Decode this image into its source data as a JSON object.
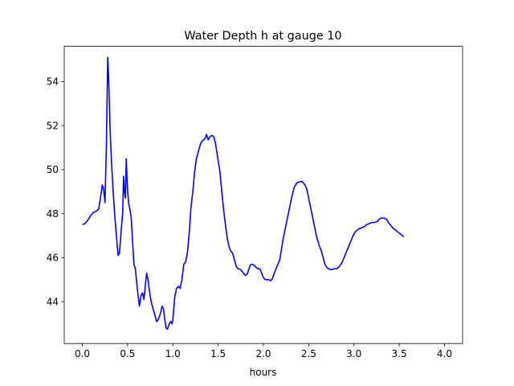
{
  "chart_data": {
    "type": "line",
    "title": "Water Depth h at gauge 10",
    "xlabel": "hours",
    "ylabel": "",
    "xlim": [
      -0.2,
      4.2
    ],
    "ylim": [
      42.1,
      55.6
    ],
    "xticks": [
      0.0,
      0.5,
      1.0,
      1.5,
      2.0,
      2.5,
      3.0,
      3.5,
      4.0
    ],
    "xtick_labels": [
      "0.0",
      "0.5",
      "1.0",
      "1.5",
      "2.0",
      "2.5",
      "3.0",
      "3.5",
      "4.0"
    ],
    "yticks": [
      44,
      46,
      48,
      50,
      52,
      54
    ],
    "ytick_labels": [
      "44",
      "46",
      "48",
      "50",
      "52",
      "54"
    ],
    "grid": false,
    "colors": {
      "line": "#0000ff"
    },
    "series": [
      {
        "points": [
          [
            0.0,
            47.5
          ],
          [
            0.03,
            47.55
          ],
          [
            0.06,
            47.7
          ],
          [
            0.09,
            47.9
          ],
          [
            0.12,
            48.05
          ],
          [
            0.15,
            48.1
          ],
          [
            0.18,
            48.2
          ],
          [
            0.2,
            48.7
          ],
          [
            0.22,
            49.3
          ],
          [
            0.235,
            49.1
          ],
          [
            0.25,
            48.5
          ],
          [
            0.265,
            51.0
          ],
          [
            0.28,
            55.1
          ],
          [
            0.29,
            54.2
          ],
          [
            0.305,
            52.0
          ],
          [
            0.32,
            50.5
          ],
          [
            0.34,
            49.0
          ],
          [
            0.36,
            47.8
          ],
          [
            0.38,
            46.8
          ],
          [
            0.395,
            46.1
          ],
          [
            0.41,
            46.2
          ],
          [
            0.43,
            47.3
          ],
          [
            0.445,
            48.0
          ],
          [
            0.455,
            49.7
          ],
          [
            0.465,
            49.0
          ],
          [
            0.475,
            48.7
          ],
          [
            0.485,
            50.5
          ],
          [
            0.495,
            49.4
          ],
          [
            0.51,
            48.5
          ],
          [
            0.525,
            48.2
          ],
          [
            0.54,
            47.8
          ],
          [
            0.555,
            46.7
          ],
          [
            0.57,
            45.7
          ],
          [
            0.585,
            45.5
          ],
          [
            0.6,
            44.9
          ],
          [
            0.615,
            44.3
          ],
          [
            0.63,
            43.8
          ],
          [
            0.65,
            44.3
          ],
          [
            0.665,
            44.4
          ],
          [
            0.68,
            44.1
          ],
          [
            0.695,
            44.7
          ],
          [
            0.71,
            45.3
          ],
          [
            0.725,
            45.0
          ],
          [
            0.74,
            44.5
          ],
          [
            0.76,
            44.0
          ],
          [
            0.78,
            43.7
          ],
          [
            0.8,
            43.4
          ],
          [
            0.82,
            43.1
          ],
          [
            0.84,
            43.2
          ],
          [
            0.865,
            43.5
          ],
          [
            0.88,
            43.8
          ],
          [
            0.895,
            43.7
          ],
          [
            0.91,
            43.2
          ],
          [
            0.925,
            42.8
          ],
          [
            0.94,
            42.75
          ],
          [
            0.96,
            43.0
          ],
          [
            0.975,
            43.1
          ],
          [
            0.99,
            43.0
          ],
          [
            1.0,
            43.2
          ],
          [
            1.02,
            44.2
          ],
          [
            1.04,
            44.6
          ],
          [
            1.06,
            44.7
          ],
          [
            1.08,
            44.6
          ],
          [
            1.1,
            45.0
          ],
          [
            1.12,
            45.7
          ],
          [
            1.14,
            45.8
          ],
          [
            1.16,
            46.2
          ],
          [
            1.18,
            47.1
          ],
          [
            1.2,
            48.3
          ],
          [
            1.22,
            49.0
          ],
          [
            1.24,
            49.9
          ],
          [
            1.26,
            50.5
          ],
          [
            1.28,
            50.8
          ],
          [
            1.3,
            51.1
          ],
          [
            1.32,
            51.3
          ],
          [
            1.34,
            51.35
          ],
          [
            1.36,
            51.45
          ],
          [
            1.37,
            51.6
          ],
          [
            1.39,
            51.35
          ],
          [
            1.41,
            51.5
          ],
          [
            1.43,
            51.55
          ],
          [
            1.45,
            51.5
          ],
          [
            1.47,
            51.2
          ],
          [
            1.5,
            50.4
          ],
          [
            1.52,
            49.9
          ],
          [
            1.54,
            49.0
          ],
          [
            1.56,
            48.2
          ],
          [
            1.58,
            47.5
          ],
          [
            1.6,
            46.9
          ],
          [
            1.62,
            46.5
          ],
          [
            1.64,
            46.3
          ],
          [
            1.66,
            46.2
          ],
          [
            1.68,
            45.9
          ],
          [
            1.7,
            45.6
          ],
          [
            1.72,
            45.5
          ],
          [
            1.75,
            45.45
          ],
          [
            1.78,
            45.3
          ],
          [
            1.8,
            45.2
          ],
          [
            1.82,
            45.25
          ],
          [
            1.84,
            45.5
          ],
          [
            1.86,
            45.7
          ],
          [
            1.88,
            45.7
          ],
          [
            1.9,
            45.65
          ],
          [
            1.92,
            45.55
          ],
          [
            1.94,
            45.5
          ],
          [
            1.96,
            45.5
          ],
          [
            1.98,
            45.3
          ],
          [
            2.0,
            45.1
          ],
          [
            2.02,
            45.0
          ],
          [
            2.04,
            45.0
          ],
          [
            2.06,
            45.0
          ],
          [
            2.08,
            44.95
          ],
          [
            2.1,
            45.05
          ],
          [
            2.12,
            45.3
          ],
          [
            2.14,
            45.5
          ],
          [
            2.16,
            45.7
          ],
          [
            2.18,
            45.9
          ],
          [
            2.2,
            46.4
          ],
          [
            2.22,
            46.9
          ],
          [
            2.25,
            47.5
          ],
          [
            2.28,
            48.1
          ],
          [
            2.31,
            48.7
          ],
          [
            2.34,
            49.2
          ],
          [
            2.37,
            49.4
          ],
          [
            2.4,
            49.45
          ],
          [
            2.43,
            49.45
          ],
          [
            2.46,
            49.3
          ],
          [
            2.48,
            49.1
          ],
          [
            2.5,
            48.7
          ],
          [
            2.53,
            48.1
          ],
          [
            2.56,
            47.5
          ],
          [
            2.59,
            46.9
          ],
          [
            2.62,
            46.5
          ],
          [
            2.64,
            46.3
          ],
          [
            2.66,
            46.0
          ],
          [
            2.68,
            45.7
          ],
          [
            2.7,
            45.55
          ],
          [
            2.72,
            45.5
          ],
          [
            2.75,
            45.45
          ],
          [
            2.78,
            45.5
          ],
          [
            2.81,
            45.5
          ],
          [
            2.84,
            45.6
          ],
          [
            2.87,
            45.8
          ],
          [
            2.9,
            46.1
          ],
          [
            2.93,
            46.4
          ],
          [
            2.96,
            46.7
          ],
          [
            2.99,
            47.0
          ],
          [
            3.02,
            47.2
          ],
          [
            3.05,
            47.3
          ],
          [
            3.08,
            47.35
          ],
          [
            3.11,
            47.4
          ],
          [
            3.14,
            47.5
          ],
          [
            3.17,
            47.55
          ],
          [
            3.2,
            47.6
          ],
          [
            3.23,
            47.6
          ],
          [
            3.26,
            47.65
          ],
          [
            3.28,
            47.75
          ],
          [
            3.3,
            47.8
          ],
          [
            3.33,
            47.8
          ],
          [
            3.36,
            47.75
          ],
          [
            3.38,
            47.6
          ],
          [
            3.4,
            47.5
          ],
          [
            3.43,
            47.35
          ],
          [
            3.46,
            47.25
          ],
          [
            3.49,
            47.15
          ],
          [
            3.52,
            47.05
          ],
          [
            3.55,
            46.95
          ]
        ]
      }
    ]
  }
}
